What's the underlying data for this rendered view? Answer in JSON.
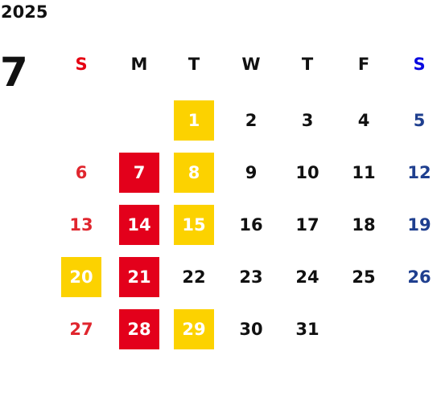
{
  "year": "2025",
  "month": "7",
  "weekdays": [
    "S",
    "M",
    "T",
    "W",
    "T",
    "F",
    "S"
  ],
  "header_colors": [
    "#e60012",
    "#111111",
    "#111111",
    "#111111",
    "#111111",
    "#111111",
    "#0a0ae0"
  ],
  "day_colors": [
    "#e0262e",
    "#111111",
    "#111111",
    "#111111",
    "#111111",
    "#111111",
    "#1f3f8f"
  ],
  "weeks": [
    [
      null,
      null,
      "1",
      "2",
      "3",
      "4",
      "5"
    ],
    [
      "6",
      "7",
      "8",
      "9",
      "10",
      "11",
      "12"
    ],
    [
      "13",
      "14",
      "15",
      "16",
      "17",
      "18",
      "19"
    ],
    [
      "20",
      "21",
      "22",
      "23",
      "24",
      "25",
      "26"
    ],
    [
      "27",
      "28",
      "29",
      "30",
      "31",
      null,
      null
    ]
  ],
  "fills": [
    [
      null,
      null,
      "#fcd200",
      null,
      null,
      null,
      null
    ],
    [
      null,
      "#e3001b",
      "#fcd200",
      null,
      null,
      null,
      null
    ],
    [
      null,
      "#e3001b",
      "#fcd200",
      null,
      null,
      null,
      null
    ],
    [
      "#fcd200",
      "#e3001b",
      null,
      null,
      null,
      null,
      null
    ],
    [
      null,
      "#e3001b",
      "#fcd200",
      null,
      null,
      null,
      null
    ]
  ]
}
